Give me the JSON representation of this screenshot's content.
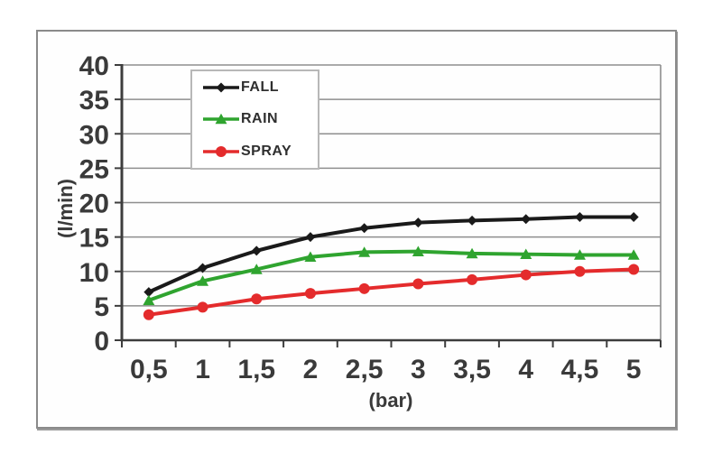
{
  "chart_data": {
    "type": "line",
    "title": "",
    "xlabel": "(bar)",
    "ylabel": "(l/min)",
    "x": [
      0.5,
      1,
      1.5,
      2,
      2.5,
      3,
      3.5,
      4,
      4.5,
      5
    ],
    "x_tick_labels": [
      "0,5",
      "1",
      "1,5",
      "2",
      "2,5",
      "3",
      "3,5",
      "4",
      "4,5",
      "5"
    ],
    "ylim": [
      0,
      40
    ],
    "y_step": 5,
    "grid": "horizontal",
    "legend_position": "upper-left-inside",
    "colors": {
      "grid": "#8e8e8e",
      "axis": "#3d3d3d",
      "text": "#3a3a3a",
      "plot_bg": "#ffffff"
    },
    "series": [
      {
        "name": "FALL",
        "color": "#1a1a1a",
        "marker": "diamond",
        "values": [
          7.0,
          10.5,
          13.0,
          15.0,
          16.3,
          17.1,
          17.4,
          17.6,
          17.9,
          17.9
        ]
      },
      {
        "name": "RAIN",
        "color": "#2fa42f",
        "marker": "triangle",
        "values": [
          5.8,
          8.6,
          10.3,
          12.1,
          12.8,
          12.9,
          12.6,
          12.5,
          12.4,
          12.4
        ]
      },
      {
        "name": "SPRAY",
        "color": "#e42b2c",
        "marker": "circle",
        "values": [
          3.7,
          4.8,
          6.0,
          6.8,
          7.5,
          8.2,
          8.8,
          9.5,
          10.0,
          10.3
        ]
      }
    ]
  }
}
